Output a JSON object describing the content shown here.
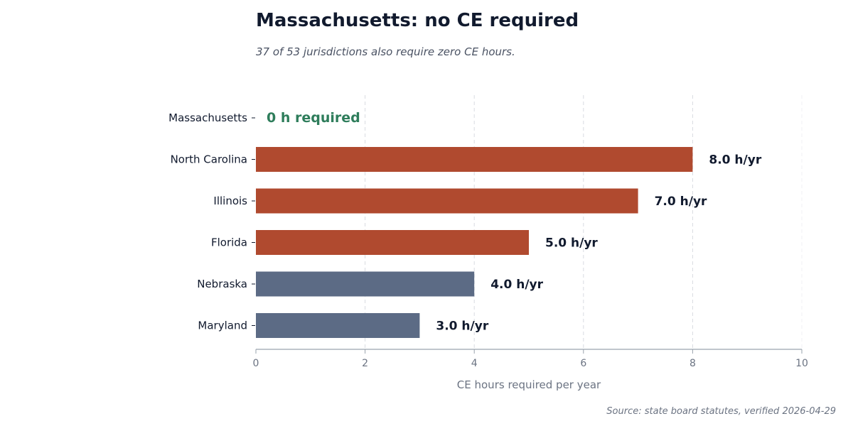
{
  "chart_data": {
    "type": "bar",
    "orientation": "horizontal",
    "title": "Massachusetts: no CE required",
    "subtitle": "37 of 53 jurisdictions also require zero CE hours.",
    "source": "Source: state board statutes, verified 2026-04-29",
    "xlabel": "CE hours required per year",
    "ylabel": "",
    "xlim": [
      0,
      10
    ],
    "x_ticks": [
      0,
      2,
      4,
      6,
      8,
      10
    ],
    "grid": "vertical dashed",
    "categories": [
      "Massachusetts",
      "North Carolina",
      "Illinois",
      "Florida",
      "Nebraska",
      "Maryland"
    ],
    "values": [
      0,
      8,
      7,
      5,
      4,
      3
    ],
    "value_labels": [
      "0 h required",
      "8.0 h/yr",
      "7.0 h/yr",
      "5.0 h/yr",
      "4.0 h/yr",
      "3.0 h/yr"
    ],
    "bar_colors": [
      "#2e7d5b",
      "#b04a2f",
      "#b04a2f",
      "#b04a2f",
      "#5c6b85",
      "#5c6b85"
    ]
  }
}
